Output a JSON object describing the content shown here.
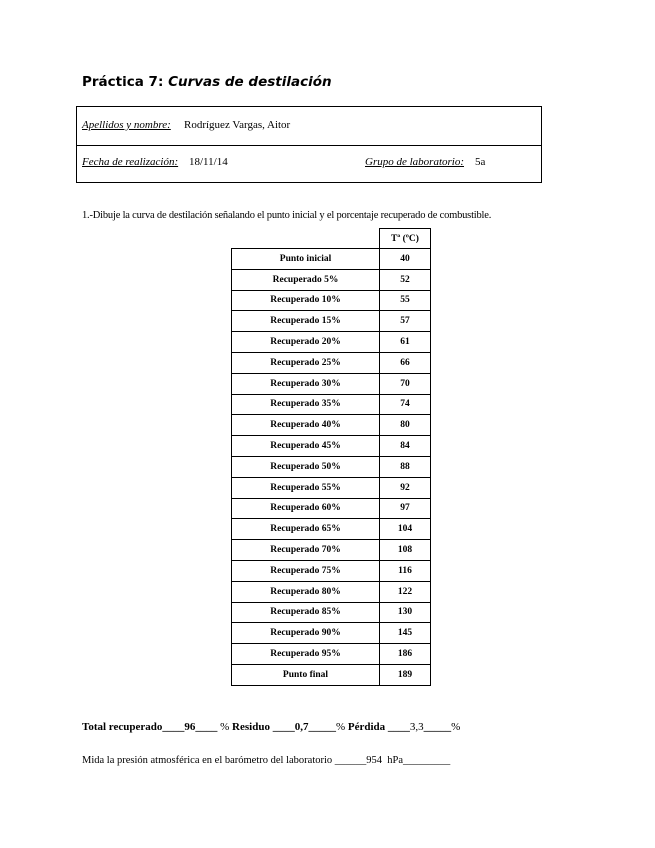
{
  "title": {
    "prefix": "Práctica 7: ",
    "main": "Curvas de destilación"
  },
  "info": {
    "name_label": "Apellidos y nombre:",
    "name_value": "Rodríguez Vargas, Aitor",
    "date_label": "Fecha de realización:",
    "date_value": "18/11/14",
    "group_label": "Grupo de laboratorio:",
    "group_value": "5a"
  },
  "question": "1.-Dibuje la curva de destilación señalando el punto inicial y el porcentaje recuperado de combustible.",
  "table": {
    "header": "Tª (ºC)",
    "rows": [
      {
        "label": "Punto inicial",
        "value": "40"
      },
      {
        "label": "Recuperado 5%",
        "value": "52"
      },
      {
        "label": "Recuperado 10%",
        "value": "55"
      },
      {
        "label": "Recuperado 15%",
        "value": "57"
      },
      {
        "label": "Recuperado 20%",
        "value": "61"
      },
      {
        "label": "Recuperado 25%",
        "value": "66"
      },
      {
        "label": "Recuperado 30%",
        "value": "70"
      },
      {
        "label": "Recuperado 35%",
        "value": "74"
      },
      {
        "label": "Recuperado 40%",
        "value": "80"
      },
      {
        "label": "Recuperado 45%",
        "value": "84"
      },
      {
        "label": "Recuperado 50%",
        "value": "88"
      },
      {
        "label": "Recuperado 55%",
        "value": "92"
      },
      {
        "label": "Recuperado 60%",
        "value": "97"
      },
      {
        "label": "Recuperado 65%",
        "value": "104"
      },
      {
        "label": "Recuperado 70%",
        "value": "108"
      },
      {
        "label": "Recuperado 75%",
        "value": "116"
      },
      {
        "label": "Recuperado 80%",
        "value": "122"
      },
      {
        "label": "Recuperado 85%",
        "value": "130"
      },
      {
        "label": "Recuperado 90%",
        "value": "145"
      },
      {
        "label": "Recuperado 95%",
        "value": "186"
      },
      {
        "label": "Punto final",
        "value": "189"
      }
    ]
  },
  "totals": {
    "recovered_label": "Total recuperado",
    "recovered": "96",
    "residue_label": "Residuo",
    "residue": "0,7",
    "loss_label": "Pérdida",
    "loss": "3,3",
    "unit": "%"
  },
  "pressure": {
    "label": "Mida la presión atmosférica en el barómetro del laboratorio",
    "value": "954",
    "unit": "hPa"
  }
}
